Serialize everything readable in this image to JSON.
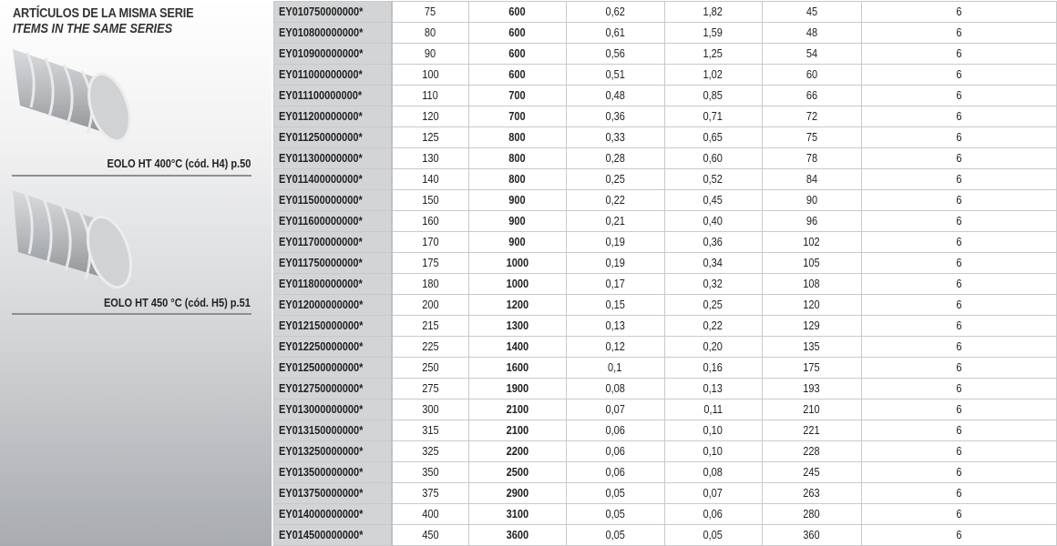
{
  "sidebar": {
    "title": "ARTÍCULOS DE LA MISMA SERIE",
    "subtitle": "ITEMS IN THE SAME SERIES",
    "items": [
      {
        "caption": "EOLO HT 400°C (cód. H4) p.50",
        "icon": "flexible-duct-image"
      },
      {
        "caption": "EOLO HT 450 °C (cód. H5) p.51",
        "icon": "flexible-duct-image"
      }
    ]
  },
  "table": {
    "rows": [
      [
        "EY010750000000*",
        "75",
        "600",
        "0,62",
        "1,82",
        "45",
        "6"
      ],
      [
        "EY010800000000*",
        "80",
        "600",
        "0,61",
        "1,59",
        "48",
        "6"
      ],
      [
        "EY010900000000*",
        "90",
        "600",
        "0,56",
        "1,25",
        "54",
        "6"
      ],
      [
        "EY011000000000*",
        "100",
        "600",
        "0,51",
        "1,02",
        "60",
        "6"
      ],
      [
        "EY011100000000*",
        "110",
        "700",
        "0,48",
        "0,85",
        "66",
        "6"
      ],
      [
        "EY011200000000*",
        "120",
        "700",
        "0,36",
        "0,71",
        "72",
        "6"
      ],
      [
        "EY011250000000*",
        "125",
        "800",
        "0,33",
        "0,65",
        "75",
        "6"
      ],
      [
        "EY011300000000*",
        "130",
        "800",
        "0,28",
        "0,60",
        "78",
        "6"
      ],
      [
        "EY011400000000*",
        "140",
        "800",
        "0,25",
        "0,52",
        "84",
        "6"
      ],
      [
        "EY011500000000*",
        "150",
        "900",
        "0,22",
        "0,45",
        "90",
        "6"
      ],
      [
        "EY011600000000*",
        "160",
        "900",
        "0,21",
        "0,40",
        "96",
        "6"
      ],
      [
        "EY011700000000*",
        "170",
        "900",
        "0,19",
        "0,36",
        "102",
        "6"
      ],
      [
        "EY011750000000*",
        "175",
        "1000",
        "0,19",
        "0,34",
        "105",
        "6"
      ],
      [
        "EY011800000000*",
        "180",
        "1000",
        "0,17",
        "0,32",
        "108",
        "6"
      ],
      [
        "EY012000000000*",
        "200",
        "1200",
        "0,15",
        "0,25",
        "120",
        "6"
      ],
      [
        "EY012150000000*",
        "215",
        "1300",
        "0,13",
        "0,22",
        "129",
        "6"
      ],
      [
        "EY012250000000*",
        "225",
        "1400",
        "0,12",
        "0,20",
        "135",
        "6"
      ],
      [
        "EY012500000000*",
        "250",
        "1600",
        "0,1",
        "0,16",
        "175",
        "6"
      ],
      [
        "EY012750000000*",
        "275",
        "1900",
        "0,08",
        "0,13",
        "193",
        "6"
      ],
      [
        "EY013000000000*",
        "300",
        "2100",
        "0,07",
        "0,11",
        "210",
        "6"
      ],
      [
        "EY013150000000*",
        "315",
        "2100",
        "0,06",
        "0,10",
        "221",
        "6"
      ],
      [
        "EY013250000000*",
        "325",
        "2200",
        "0,06",
        "0,10",
        "228",
        "6"
      ],
      [
        "EY013500000000*",
        "350",
        "2500",
        "0,06",
        "0,08",
        "245",
        "6"
      ],
      [
        "EY013750000000*",
        "375",
        "2900",
        "0,05",
        "0,07",
        "263",
        "6"
      ],
      [
        "EY014000000000*",
        "400",
        "3100",
        "0,05",
        "0,06",
        "280",
        "6"
      ],
      [
        "EY014500000000*",
        "450",
        "3600",
        "0,05",
        "0,05",
        "360",
        "6"
      ]
    ]
  }
}
